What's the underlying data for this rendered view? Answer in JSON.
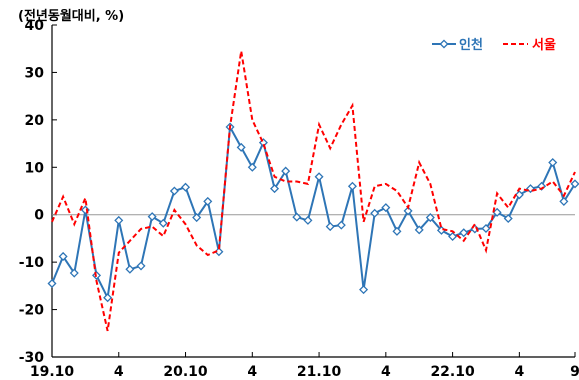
{
  "chart_data": {
    "type": "line",
    "unit_label": "(전년동월대비, %)",
    "ylim": [
      -30,
      40
    ],
    "yticks": [
      40,
      30,
      20,
      10,
      0,
      -10,
      -20,
      -30
    ],
    "xtick_labels": [
      {
        "label": "19.10",
        "index": 0
      },
      {
        "label": "4",
        "index": 6
      },
      {
        "label": "20.10",
        "index": 12
      },
      {
        "label": "4",
        "index": 18
      },
      {
        "label": "21.10",
        "index": 24
      },
      {
        "label": "4",
        "index": 30
      },
      {
        "label": "22.10",
        "index": 36
      },
      {
        "label": "4",
        "index": 42
      },
      {
        "label": "9",
        "index": 47
      }
    ],
    "legend_position": "top-right",
    "grid": false,
    "series": [
      {
        "name": "인천",
        "color": "#2E75B6",
        "style": "solid-diamond",
        "values": [
          -14.5,
          -8.8,
          -12.3,
          1.0,
          -12.8,
          -17.5,
          -1.2,
          -11.5,
          -10.8,
          -0.4,
          -1.8,
          5.0,
          5.8,
          -0.6,
          2.8,
          -7.8,
          18.5,
          14.2,
          10.0,
          15.2,
          5.5,
          9.2,
          -0.5,
          -1.2,
          8.0,
          -2.5,
          -2.2,
          6.0,
          -15.8,
          0.3,
          1.5,
          -3.5,
          0.8,
          -3.2,
          -0.6,
          -3.3,
          -4.6,
          -3.8,
          -3.0,
          -2.9,
          0.5,
          -0.8,
          4.2,
          5.5,
          6.0,
          11.0,
          2.8,
          6.5
        ]
      },
      {
        "name": "서울",
        "color": "#FF0000",
        "style": "dashed",
        "values": [
          -1.5,
          3.8,
          -2.0,
          3.5,
          -14.0,
          -24.5,
          -8.0,
          -5.5,
          -3.0,
          -2.5,
          -4.5,
          1.0,
          -2.0,
          -6.5,
          -8.5,
          -7.5,
          18.5,
          34.5,
          20.0,
          15.0,
          8.0,
          7.0,
          7.0,
          6.5,
          19.0,
          14.0,
          19.0,
          23.0,
          -1.5,
          6.0,
          6.5,
          5.0,
          1.5,
          11.0,
          6.5,
          -3.0,
          -3.5,
          -5.5,
          -2.0,
          -7.5,
          4.5,
          1.5,
          5.5,
          5.0,
          5.5,
          7.0,
          4.0,
          9.0
        ]
      }
    ]
  }
}
